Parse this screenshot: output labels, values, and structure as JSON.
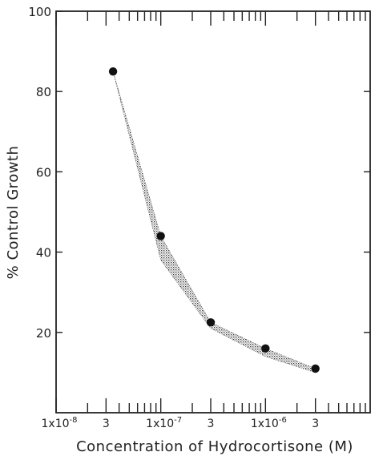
{
  "chart_data": {
    "type": "line",
    "title": "",
    "xlabel": "Concentration of Hydrocortisone (M)",
    "ylabel": "% Control Growth",
    "x_scale": "log",
    "xlim": [
      1e-08,
      1e-05
    ],
    "ylim": [
      0,
      100
    ],
    "yticks": [
      {
        "value": 20,
        "label": "20"
      },
      {
        "value": 40,
        "label": "40"
      },
      {
        "value": 60,
        "label": "60"
      },
      {
        "value": 80,
        "label": "80"
      },
      {
        "value": 100,
        "label": "100"
      }
    ],
    "xticks": [
      {
        "value": 1e-08,
        "label": "1x10",
        "exp": "-8"
      },
      {
        "value": 3e-08,
        "label": "3",
        "exp": ""
      },
      {
        "value": 1e-07,
        "label": "1x10",
        "exp": "-7"
      },
      {
        "value": 3e-07,
        "label": "3",
        "exp": ""
      },
      {
        "value": 1e-06,
        "label": "1x10",
        "exp": "-6"
      },
      {
        "value": 3e-06,
        "label": "3",
        "exp": ""
      }
    ],
    "series": [
      {
        "x": [
          3.5e-08,
          1e-07,
          3e-07,
          1e-06,
          3e-06
        ],
        "y": [
          85,
          44,
          22.5,
          16,
          11
        ],
        "band_upper": [
          85,
          44,
          22.5,
          16,
          11
        ],
        "band_lower": [
          85,
          38,
          21,
          14,
          10
        ],
        "marker_color": "#111111",
        "band_color": "#555555"
      }
    ],
    "grid": false,
    "legend": "none"
  }
}
